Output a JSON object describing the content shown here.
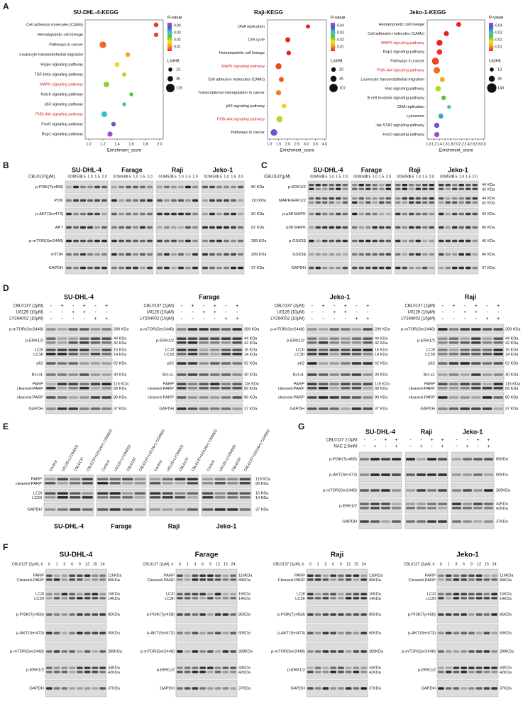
{
  "chart_data": [
    {
      "type": "scatter",
      "title": "SU-DHL-4-KEGG",
      "x_label": "Enrichment_score",
      "categories": [
        "Cell adhesion molecules (CAMs)",
        "Hematopoietic cell lineage",
        "Pathways in cancer",
        "Leukocyte transendothelial migration",
        "Hippo signaling pathway",
        "TGF-beta signaling pathway",
        "MAPK signaling pathway",
        "Notch signaling pathway",
        "p53 signaling pathway",
        "PI3K-Akt signaling pathway",
        "FoxO signaling pathway",
        "Rap1 signaling pathway"
      ],
      "label_colors": [
        "#111",
        "#111",
        "#111",
        "#111",
        "#111",
        "#111",
        "#d7191c",
        "#111",
        "#111",
        "#d7191c",
        "#111",
        "#111"
      ],
      "values": [
        1.95,
        1.95,
        1.2,
        1.55,
        1.4,
        1.5,
        1.25,
        1.6,
        1.5,
        1.22,
        1.35,
        1.3
      ],
      "sizes": [
        20,
        18,
        60,
        22,
        22,
        15,
        35,
        12,
        12,
        40,
        20,
        28
      ],
      "pvalues": [
        0.005,
        0.006,
        0.008,
        0.012,
        0.016,
        0.02,
        0.022,
        0.024,
        0.03,
        0.031,
        0.04,
        0.042
      ],
      "xlim": [
        0.95,
        2.05
      ],
      "xticks": [
        {
          "value": 1,
          "label": "1.0"
        },
        1.2,
        1.4,
        1.6,
        1.8,
        {
          "value": 2,
          "label": "2.0"
        }
      ],
      "color_label": "P-value",
      "clim": [
        0.004,
        0.044
      ],
      "cticks": [
        0.04,
        0.03,
        0.02,
        0.01
      ],
      "colormap": [
        "#e8231f",
        "#f39c1f",
        "#f2e41c",
        "#5cc23b",
        "#35c9c4",
        "#3b5fd6",
        "#c43fd0"
      ],
      "size_label": "ListHit",
      "size_ticks": [
        13,
        36,
        115
      ]
    },
    {
      "type": "scatter",
      "title": "Raji-KEGG",
      "x_label": "Enrichment_score",
      "categories": [
        "DNA replication",
        "Cell cycle",
        "Hematopoietic cell lineage",
        "MAPK signaling pathway",
        "Cell adhesion molecules (CAMs)",
        "Transcriptional misregulation in cancer",
        "p53 signaling pathway",
        "PI3K-Akt signaling pathway",
        "Pathways in cancer"
      ],
      "label_colors": [
        "#111",
        "#111",
        "#111",
        "#d7191c",
        "#111",
        "#111",
        "#111",
        "#d7191c",
        "#111"
      ],
      "values": [
        3.1,
        2.0,
        2.05,
        1.5,
        1.65,
        1.5,
        1.8,
        1.55,
        1.25
      ],
      "sizes": [
        15,
        25,
        20,
        45,
        25,
        28,
        20,
        50,
        60
      ],
      "pvalues": [
        0.001,
        0.003,
        0.004,
        0.006,
        0.007,
        0.009,
        0.015,
        0.02,
        0.04
      ],
      "xlim": [
        0.9,
        4.1
      ],
      "xticks": [
        {
          "value": 1,
          "label": "1.0"
        },
        1.5,
        {
          "value": 2,
          "label": "2.0"
        },
        2.5,
        {
          "value": 3,
          "label": "3.0"
        },
        3.5,
        {
          "value": 4,
          "label": "4.0"
        }
      ],
      "color_label": "P-value",
      "clim": [
        0.004,
        0.044
      ],
      "cticks": [
        0.04,
        0.03,
        0.02,
        0.01
      ],
      "colormap": [
        "#e8231f",
        "#f39c1f",
        "#f2e41c",
        "#5cc23b",
        "#35c9c4",
        "#3b5fd6",
        "#c43fd0"
      ],
      "size_label": "ListHit",
      "size_ticks": [
        20,
        45,
        107
      ]
    },
    {
      "type": "scatter",
      "title": "Jeko-1-KEGG",
      "x_label": "Enrichment_score",
      "categories": [
        "Hematopoietic cell lineage",
        "Cell adhesion molecules (CAMs)",
        "MAPK signaling pathway",
        "Rap1 signaling pathway",
        "Pathways in cancer",
        "PI3K-Akt signaling pathway",
        "Leukocyte transendothelial migration",
        "Ras signaling pathway",
        "B cell receptor signaling pathway",
        "DNA replication",
        "Lysosome",
        "Jak-STAT signaling pathway",
        "FoxO signaling pathway"
      ],
      "label_colors": [
        "#111",
        "#111",
        "#d7191c",
        "#111",
        "#111",
        "#d7191c",
        "#111",
        "#111",
        "#111",
        "#111",
        "#111",
        "#111",
        "#111"
      ],
      "values": [
        2.1,
        1.65,
        1.4,
        1.4,
        1.25,
        1.3,
        1.5,
        1.35,
        1.55,
        1.75,
        1.45,
        1.3,
        1.3
      ],
      "sizes": [
        25,
        28,
        45,
        35,
        70,
        55,
        25,
        38,
        20,
        12,
        25,
        30,
        28
      ],
      "pvalues": [
        0.001,
        0.002,
        0.004,
        0.005,
        0.006,
        0.008,
        0.012,
        0.02,
        0.024,
        0.03,
        0.033,
        0.04,
        0.042
      ],
      "xlim": [
        0.95,
        3.05
      ],
      "xticks": [
        {
          "value": 1,
          "label": "1.0"
        },
        1.2,
        1.4,
        1.6,
        1.8,
        {
          "value": 2,
          "label": "2.0"
        },
        2.2,
        2.4,
        2.6,
        2.8,
        {
          "value": 3,
          "label": "3.0"
        }
      ],
      "color_label": "P-value",
      "clim": [
        0.004,
        0.044
      ],
      "cticks": [
        0.04,
        0.03,
        0.02,
        0.01
      ],
      "colormap": [
        "#e8231f",
        "#f39c1f",
        "#f2e41c",
        "#5cc23b",
        "#35c9c4",
        "#3b5fd6",
        "#c43fd0"
      ],
      "size_label": "ListHit",
      "size_ticks": [
        13,
        46,
        146
      ]
    }
  ],
  "panels": {
    "A": {
      "letter": "A"
    },
    "B": {
      "letter": "B",
      "treatment_label": "CBL0137(μM)",
      "lanes": [
        "0",
        "DMSO",
        "0.5",
        "1.0",
        "1.5",
        "2.0"
      ],
      "groups": [
        "SU-DHL-4",
        "Farage",
        "Raji",
        "Jeko-1"
      ],
      "rows": [
        "p-PI3K(Tyr458)",
        "PI3K",
        "p-AKT(Ser473)",
        "AKT",
        "p-mTOR(Ser2448)",
        "mTOR",
        "GAPDH"
      ],
      "kda": [
        "86 KDa",
        "110 KDa",
        "60 KDa",
        "62 KDa",
        "289 KDa",
        "289 KDa",
        "37 KDa"
      ]
    },
    "C": {
      "letter": "C",
      "treatment_label": "CBL0137(μM)",
      "lanes": [
        "0",
        "DMSO",
        "0.5",
        "1.0",
        "1.5",
        "2.0"
      ],
      "groups": [
        "SU-DHL-4",
        "Farage",
        "Raji",
        "Jeko-1"
      ],
      "rows": [
        "p-ERK1/2",
        "MAPK/ERK1/2",
        "p-p38 MAPK",
        "p38 MAPK",
        "p-GSK3β",
        "GSK3β",
        "GAPDH"
      ],
      "kda": [
        [
          "44 KDa",
          "42 KDa"
        ],
        [
          "44 KDa",
          "42 KDa"
        ],
        "43 KDa",
        "40 KDa",
        "46 KDa",
        "46 KDa",
        "37 KDa"
      ]
    },
    "D": {
      "letter": "D",
      "treatments": [
        {
          "label": "CBL0137 (2μM)",
          "signs": [
            "-",
            "+",
            "-",
            "+",
            "-",
            "+"
          ]
        },
        {
          "label": "U0126 (10μM)",
          "signs": [
            "-",
            "-",
            "+",
            "+",
            "-",
            "-"
          ]
        },
        {
          "label": "LY294002 (10μM)",
          "signs": [
            "-",
            "-",
            "-",
            "-",
            "+",
            "+"
          ]
        }
      ],
      "groups": [
        "SU-DHL-4",
        "Farage",
        "Jeko-1",
        "Raji"
      ],
      "rows": [
        "p-mTOR(Ser2448)",
        "p-ERK1/2",
        [
          "LC3I",
          "LC3II"
        ],
        "p62",
        "Bcl-xL",
        [
          "PARP",
          "cleaved-PARP"
        ],
        "cleaved-PARP",
        "GAPDH"
      ],
      "kda": [
        "289 KDa",
        [
          "44 KDa",
          "42 KDa"
        ],
        [
          "16 KDa",
          "14 KDa"
        ],
        "62 KDa",
        "30 KDa",
        [
          "116 KDa",
          "89 KDa"
        ],
        "89 KDa",
        "37 KDa"
      ]
    },
    "E": {
      "letter": "E",
      "lanes": [
        "Control",
        "U0126+LY294002",
        "CBL0137",
        "CBL0137+U0126+LY294002"
      ],
      "groups": [
        "SU-DHL-4",
        "Farage",
        "Raji",
        "Jeko-1"
      ],
      "rows": [
        [
          "PARP",
          "cleaved-PARP"
        ],
        [
          "LC3I",
          "LC3II"
        ],
        "GAPDH"
      ],
      "kda": [
        [
          "116 KDa",
          "89 KDa"
        ],
        [
          "16 KDa",
          "14 KDa"
        ],
        "37 KDa"
      ]
    },
    "G": {
      "letter": "G",
      "treatments": [
        {
          "label": "CBL0137 2.0μM",
          "signs": [
            "-",
            "-",
            "+",
            "+"
          ]
        },
        {
          "label": "NAC  2.5mM",
          "signs": [
            "-",
            "+",
            "-",
            "+"
          ]
        }
      ],
      "groups": [
        "SU-DHL-4",
        "Raji",
        "Jeko-1"
      ],
      "rows": [
        "p-PI3K(Tyr458)",
        "p-AKT(Ser473)",
        "p-mTOR(Ser2448)",
        "p-ERK1/2",
        "GAPDH"
      ],
      "kda": [
        "85KDa",
        "60KDa",
        "289KDa",
        [
          "44KDa",
          "42KDa"
        ],
        "37KDa"
      ]
    },
    "F": {
      "letter": "F",
      "treatment_label": "CBL0137 (2μM), h",
      "lanes": [
        "0",
        "1",
        "3",
        "6",
        "9",
        "12",
        "15",
        "24"
      ],
      "groups": [
        "SU-DHL-4",
        "Farage",
        "Raji",
        "Jeko-1"
      ],
      "rows": [
        [
          "PARP",
          "Cleaved-PARP"
        ],
        [
          "LC3I",
          "LC3II"
        ],
        "p-PI3K(Tyr458)",
        "p-AKT(Ser473)",
        "p-mTOR(Ser2448)",
        "p-ERK1/2",
        "GAPDH"
      ],
      "kda": [
        [
          "116KDa",
          "89KDa"
        ],
        [
          "16KDa",
          "14KDa"
        ],
        "85KDa",
        "60KDa",
        "289KDa",
        [
          "44KDa",
          "42KDa"
        ],
        "37KDa"
      ]
    }
  }
}
